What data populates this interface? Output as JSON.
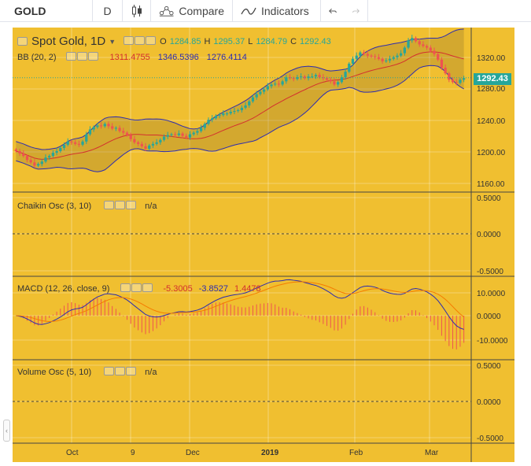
{
  "toolbar": {
    "symbol": "GOLD",
    "interval": "D",
    "compare_label": "Compare",
    "indicators_label": "Indicators"
  },
  "main_pane": {
    "title": "Spot Gold, 1D",
    "ohlc": {
      "o_label": "O",
      "o": "1284.85",
      "h_label": "H",
      "h": "1295.37",
      "l_label": "L",
      "l": "1284.79",
      "c_label": "C",
      "c": "1292.43"
    },
    "bb": {
      "label": "BB (20, 2)",
      "basis": "1311.4755",
      "upper": "1346.5396",
      "lower": "1276.4114"
    },
    "last_price": "1292.43",
    "price_ticks": [
      "1320.00",
      "1280.00",
      "1240.00",
      "1200.00",
      "1160.00"
    ]
  },
  "chaikin_pane": {
    "label": "Chaikin Osc (3, 10)",
    "value": "n/a",
    "ticks": [
      "0.5000",
      "0.0000",
      "-0.5000"
    ]
  },
  "macd_pane": {
    "label": "MACD (12, 26, close, 9)",
    "hist": "-5.3005",
    "macd": "-3.8527",
    "signal": "1.4478",
    "ticks": [
      "10.0000",
      "0.0000",
      "-10.0000"
    ]
  },
  "volume_osc_pane": {
    "label": "Volume Osc (5, 10)",
    "value": "n/a",
    "ticks": [
      "0.5000",
      "0.0000",
      "-0.5000"
    ]
  },
  "time_axis": [
    "Oct",
    "9",
    "Dec",
    "2019",
    "Feb",
    "Mar"
  ],
  "colors": {
    "pane_bg": "#f0bf30",
    "up": "#26a69a",
    "down": "#ef5350",
    "bb_band": "#2c2cb0",
    "bb_basis": "#d32f2f"
  },
  "chart_data": {
    "type": "candlestick",
    "title": "Spot Gold, 1D",
    "x_range": [
      "2018-09-14",
      "2019-03-08"
    ],
    "y_range": [
      1150,
      1355
    ],
    "closes": [
      1201,
      1198,
      1195,
      1190,
      1187,
      1183,
      1185,
      1188,
      1193,
      1195,
      1199,
      1201,
      1205,
      1209,
      1213,
      1212,
      1210,
      1209,
      1213,
      1222,
      1228,
      1231,
      1233,
      1232,
      1235,
      1232,
      1229,
      1230,
      1226,
      1224,
      1221,
      1216,
      1212,
      1210,
      1207,
      1204,
      1208,
      1210,
      1212,
      1215,
      1219,
      1221,
      1222,
      1221,
      1223,
      1220,
      1218,
      1222,
      1224,
      1226,
      1230,
      1235,
      1240,
      1242,
      1245,
      1246,
      1248,
      1248,
      1250,
      1251,
      1252,
      1255,
      1258,
      1263,
      1268,
      1272,
      1275,
      1278,
      1282,
      1284,
      1285,
      1284,
      1288,
      1293,
      1292,
      1291,
      1293,
      1294,
      1292,
      1294,
      1294,
      1296,
      1293,
      1292,
      1290,
      1288,
      1284,
      1287,
      1293,
      1300,
      1310,
      1316,
      1320,
      1324,
      1322,
      1320,
      1319,
      1318,
      1316,
      1313,
      1314,
      1316,
      1318,
      1320,
      1323,
      1330,
      1339,
      1342,
      1338,
      1334,
      1332,
      1330,
      1326,
      1322,
      1315,
      1305,
      1298,
      1290,
      1287,
      1286,
      1290,
      1292
    ]
  }
}
